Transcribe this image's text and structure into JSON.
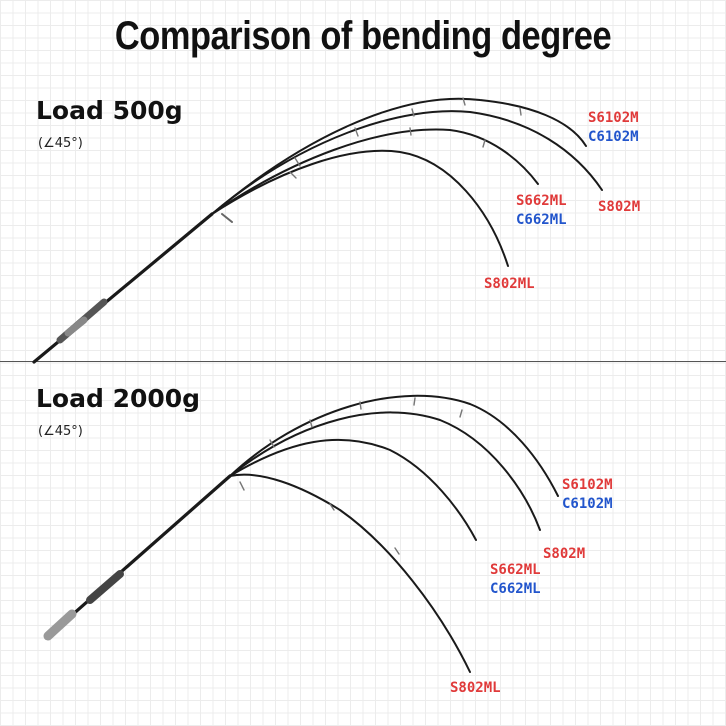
{
  "title": "Comparison of bending degree",
  "panels": {
    "p500": {
      "load_label": "Load 500g",
      "angle_label": "(∠45°)",
      "rods": {
        "s6102m": "S6102M",
        "c6102m": "C6102M",
        "s802m": "S802M",
        "s662ml": "S662ML",
        "c662ml": "C662ML",
        "s802ml": "S802ML"
      }
    },
    "p2000": {
      "load_label": "Load 2000g",
      "angle_label": "(∠45°)",
      "rods": {
        "s6102m": "S6102M",
        "c6102m": "C6102M",
        "s802m": "S802M",
        "s662ml": "S662ML",
        "c662ml": "C662ML",
        "s802ml": "S802ML"
      }
    }
  },
  "colors": {
    "S_models": "#e03a3a",
    "C_models": "#2255cc",
    "rod": "#1a1a1a"
  }
}
